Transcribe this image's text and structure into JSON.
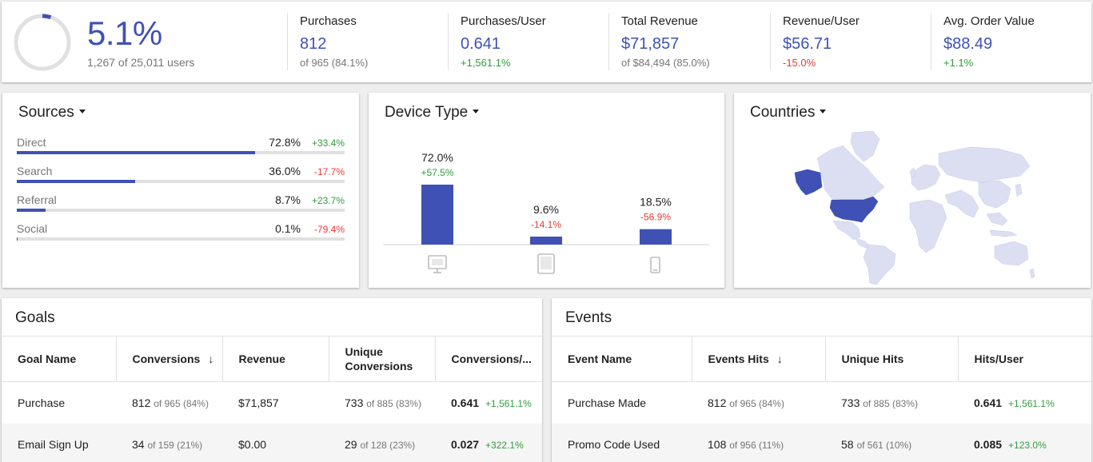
{
  "kpi": {
    "conversion_rate": "5.1%",
    "conversion_progress": 0.051,
    "conversion_sub": "1,267 of 25,011 users",
    "metrics": [
      {
        "label": "Purchases",
        "value": "812",
        "sub": "of 965 (84.1%)",
        "sub_type": "grey"
      },
      {
        "label": "Purchases/User",
        "value": "0.641",
        "sub": "+1,561.1%",
        "sub_type": "pos"
      },
      {
        "label": "Total Revenue",
        "value": "$71,857",
        "sub": "of $84,494 (85.0%)",
        "sub_type": "grey"
      },
      {
        "label": "Revenue/User",
        "value": "$56.71",
        "sub": "-15.0%",
        "sub_type": "neg"
      },
      {
        "label": "Avg. Order Value",
        "value": "$88.49",
        "sub": "+1.1%",
        "sub_type": "pos"
      }
    ]
  },
  "sources": {
    "title": "Sources",
    "items": [
      {
        "name": "Direct",
        "pct": "72.8%",
        "value": 72.8,
        "change": "+33.4%",
        "change_type": "pos"
      },
      {
        "name": "Search",
        "pct": "36.0%",
        "value": 36.0,
        "change": "-17.7%",
        "change_type": "neg"
      },
      {
        "name": "Referral",
        "pct": "8.7%",
        "value": 8.7,
        "change": "+23.7%",
        "change_type": "pos"
      },
      {
        "name": "Social",
        "pct": "0.1%",
        "value": 0.1,
        "change": "-79.4%",
        "change_type": "neg"
      }
    ]
  },
  "device": {
    "title": "Device Type",
    "items": [
      {
        "icon": "desktop-icon",
        "pct": "72.0%",
        "value": 72.0,
        "change": "+57.5%",
        "change_type": "pos"
      },
      {
        "icon": "tablet-icon",
        "pct": "9.6%",
        "value": 9.6,
        "change": "-14.1%",
        "change_type": "neg"
      },
      {
        "icon": "mobile-icon",
        "pct": "18.5%",
        "value": 18.5,
        "change": "-56.9%",
        "change_type": "neg"
      }
    ]
  },
  "countries": {
    "title": "Countries",
    "highlight_color": "#3f51b5",
    "base_color": "#dcdff2"
  },
  "goals": {
    "title": "Goals",
    "columns": [
      "Goal Name",
      "Conversions",
      "Revenue",
      "Unique Conversions",
      "Conversions/..."
    ],
    "sort_icon": "arrow-down-icon",
    "rows": [
      {
        "name": "Purchase",
        "conv": "812",
        "conv_of": "of 965 (84%)",
        "revenue": "$71,857",
        "uniq": "733",
        "uniq_of": "of 885 (83%)",
        "rate": "0.641",
        "rate_chg": "+1,561.1%"
      },
      {
        "name": "Email Sign Up",
        "conv": "34",
        "conv_of": "of 159 (21%)",
        "revenue": "$0.00",
        "uniq": "29",
        "uniq_of": "of 128 (23%)",
        "rate": "0.027",
        "rate_chg": "+322.1%"
      }
    ]
  },
  "events": {
    "title": "Events",
    "columns": [
      "Event Name",
      "Events Hits",
      "Unique Hits",
      "Hits/User"
    ],
    "rows": [
      {
        "name": "Purchase Made",
        "hits": "812",
        "hits_of": "of 965 (84%)",
        "uniq": "733",
        "uniq_of": "of 885 (83%)",
        "rate": "0.641",
        "rate_chg": "+1,561.1%"
      },
      {
        "name": "Promo Code Used",
        "hits": "108",
        "hits_of": "of 956 (11%)",
        "uniq": "58",
        "uniq_of": "of 561 (10%)",
        "rate": "0.085",
        "rate_chg": "+123.0%"
      }
    ]
  }
}
